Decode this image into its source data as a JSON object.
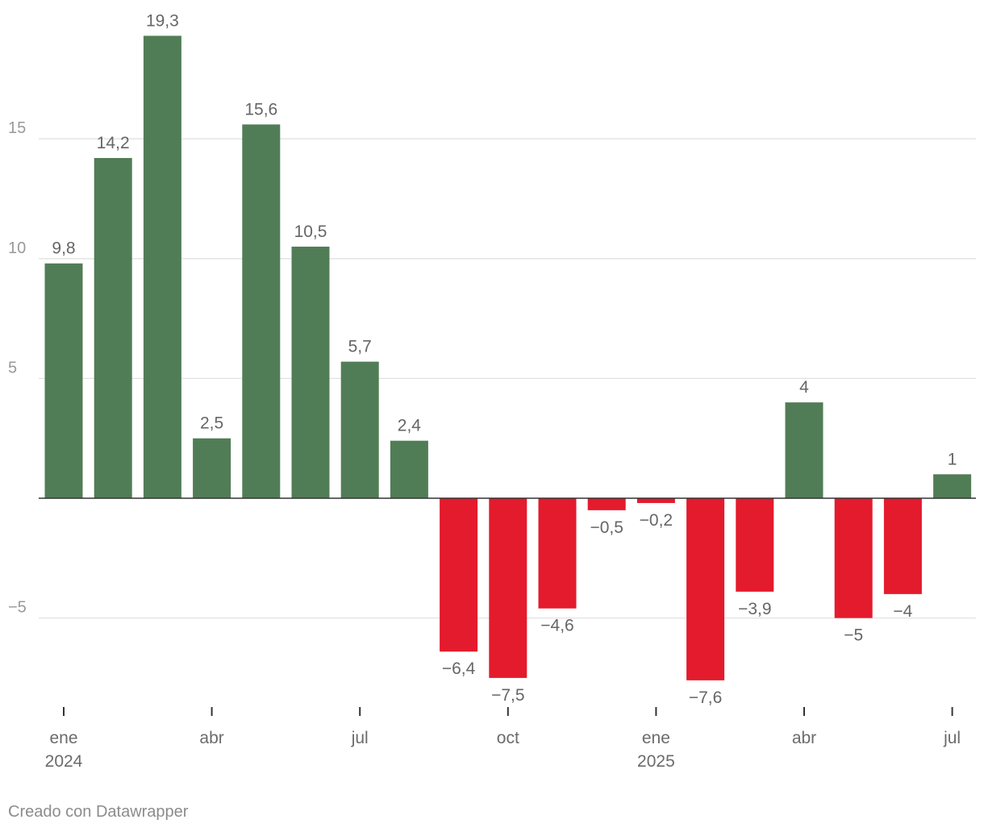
{
  "chart_data": {
    "type": "bar",
    "categories": [
      "2024-01",
      "2024-02",
      "2024-03",
      "2024-04",
      "2024-05",
      "2024-06",
      "2024-07",
      "2024-08",
      "2024-09",
      "2024-10",
      "2024-11",
      "2024-12",
      "2025-01",
      "2025-02",
      "2025-03",
      "2025-04",
      "2025-05",
      "2025-06",
      "2025-07"
    ],
    "values": [
      9.8,
      14.2,
      19.3,
      2.5,
      15.6,
      10.5,
      5.7,
      2.4,
      -6.4,
      -7.5,
      -4.6,
      -0.5,
      -0.2,
      -7.6,
      -3.9,
      4,
      -5,
      -4,
      1
    ],
    "value_labels": [
      "9,8",
      "14,2",
      "19,3",
      "2,5",
      "15,6",
      "10,5",
      "5,7",
      "2,4",
      "−6,4",
      "−7,5",
      "−4,6",
      "−0,5",
      "−0,2",
      "−7,6",
      "−3,9",
      "4",
      "−5",
      "−4",
      "1"
    ],
    "yticks": [
      -5,
      5,
      10,
      15
    ],
    "ytick_labels": [
      "−5",
      "5",
      "10",
      "15"
    ],
    "ylim": [
      -8.6,
      19.5
    ],
    "xticks": [
      {
        "month_index": 0,
        "label": "ene",
        "year": "2024"
      },
      {
        "month_index": 3,
        "label": "abr",
        "year": ""
      },
      {
        "month_index": 6,
        "label": "jul",
        "year": ""
      },
      {
        "month_index": 9,
        "label": "oct",
        "year": ""
      },
      {
        "month_index": 12,
        "label": "ene",
        "year": "2025"
      },
      {
        "month_index": 15,
        "label": "abr",
        "year": ""
      },
      {
        "month_index": 18,
        "label": "jul",
        "year": ""
      }
    ],
    "colors": {
      "positive": "#517d56",
      "negative": "#e31b2d",
      "grid": "#e2e2e2",
      "zero_line": "#333333"
    },
    "title": "",
    "xlabel": "",
    "ylabel": ""
  },
  "footer": {
    "credit": "Creado con Datawrapper"
  }
}
